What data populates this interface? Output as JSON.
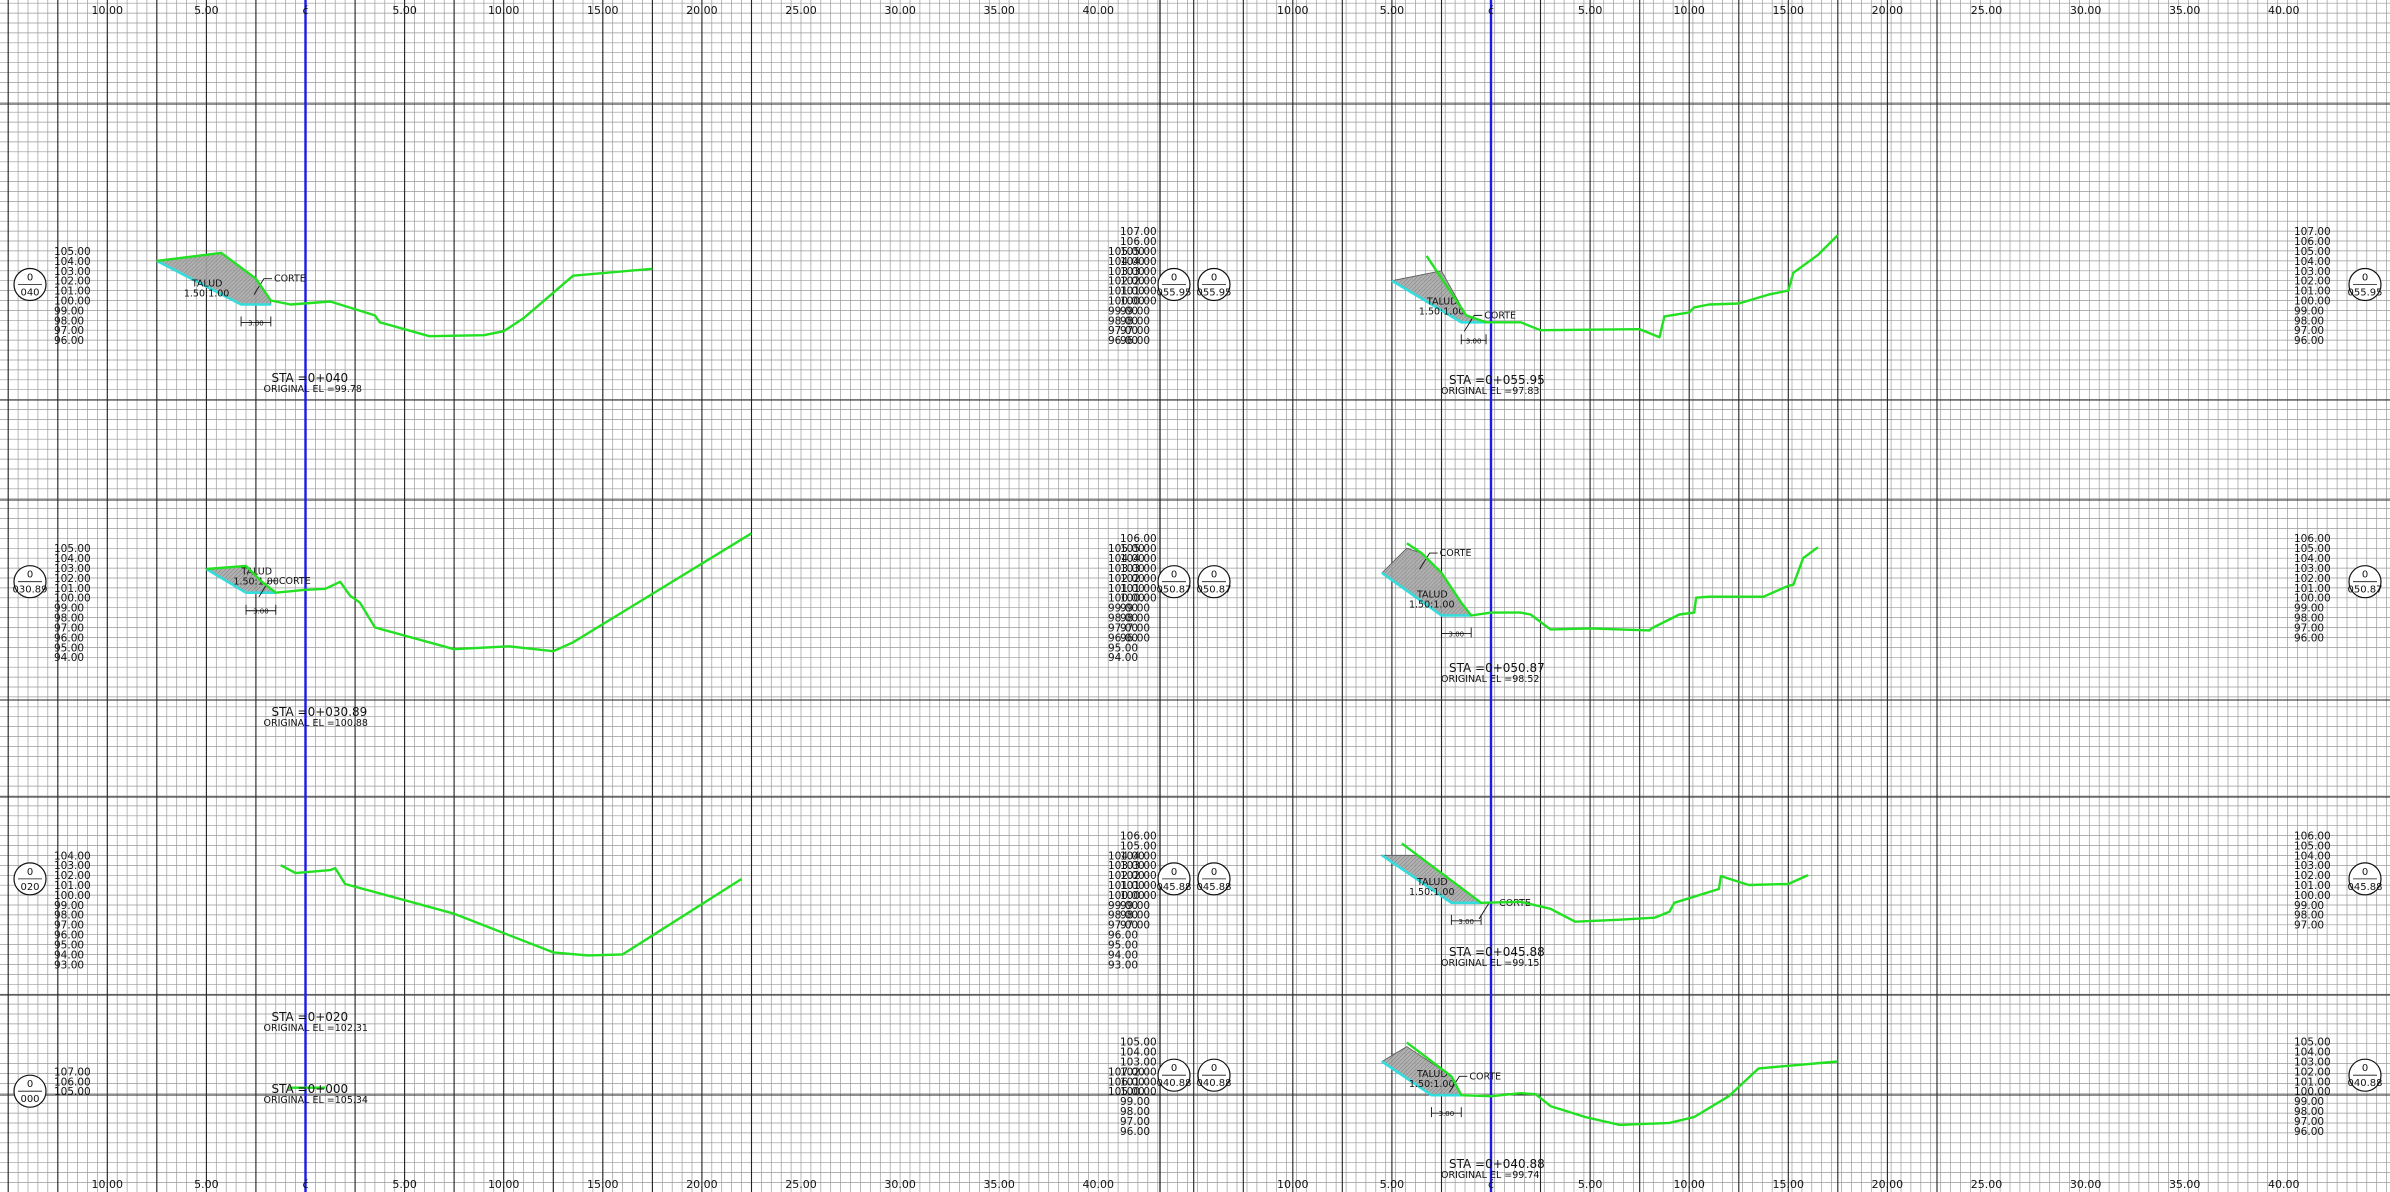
{
  "x_axis": {
    "labels_left": [
      "10.00",
      "5.00",
      "ć",
      "5.00",
      "10.00",
      "15.00",
      "20.00",
      "25.00",
      "30.00",
      "35.00",
      "40.00"
    ],
    "labels_right": [
      "10.00",
      "5.00",
      "ć",
      "5.00",
      "10.00",
      "15.00",
      "20.00",
      "25.00",
      "30.00",
      "35.00",
      "40.00"
    ]
  },
  "sections": [
    {
      "id": "sta-040",
      "column": "left",
      "elev_min": 96,
      "elev_max": 105,
      "axis_label_min": 96,
      "axis_label_max": 105,
      "bubble_left": "040",
      "bubble_right": "040",
      "sta_label": "STA =0+040",
      "orig_label": "ORIGINAL EL =99.78",
      "corte_label": "CORTE",
      "talud_label": "TALUD",
      "talud_ratio": "1.50:1.00",
      "dim_label": "3.00",
      "ground": [
        [
          -15,
          104
        ],
        [
          -8.5,
          104.8
        ],
        [
          -5,
          102.2
        ],
        [
          -3.5,
          100
        ],
        [
          -1.5,
          99.6
        ],
        [
          2.5,
          99.9
        ],
        [
          7,
          98.5
        ],
        [
          7.5,
          97.8
        ],
        [
          12.5,
          96.4
        ],
        [
          18,
          96.5
        ],
        [
          20,
          96.9
        ],
        [
          22,
          98.2
        ],
        [
          27,
          102.5
        ],
        [
          35,
          103.2
        ]
      ],
      "template": [
        [
          -15,
          104
        ],
        [
          -6.5,
          99.6
        ],
        [
          -3.5,
          99.6
        ]
      ],
      "cut": [
        [
          -15,
          104
        ],
        [
          -8.5,
          104.8
        ],
        [
          -5,
          102.2
        ],
        [
          -3.5,
          100
        ],
        [
          -3.5,
          99.6
        ],
        [
          -6.5,
          99.6
        ]
      ]
    },
    {
      "id": "sta-030-89",
      "column": "left",
      "elev_min": 94,
      "elev_max": 105,
      "axis_label_min": 94,
      "axis_label_max": 105,
      "bubble_left": "030.89",
      "bubble_right": "030.89",
      "sta_label": "STA =0+030.89",
      "orig_label": "ORIGINAL EL =100.88",
      "corte_label": "CORTE",
      "talud_label": "TALUD",
      "talud_ratio": "1.50:1.00",
      "dim_label": "3.00",
      "ground": [
        [
          -10,
          102.9
        ],
        [
          -6,
          103.2
        ],
        [
          -4.5,
          101.7
        ],
        [
          -3,
          100.5
        ],
        [
          0,
          100.8
        ],
        [
          2,
          100.9
        ],
        [
          3.5,
          101.6
        ],
        [
          4.5,
          100.2
        ],
        [
          5.5,
          99.5
        ],
        [
          7,
          97
        ],
        [
          15,
          94.8
        ],
        [
          20.5,
          95.1
        ],
        [
          25,
          94.6
        ],
        [
          27,
          95.5
        ],
        [
          45,
          106.5
        ]
      ],
      "template": [
        [
          -10,
          102.9
        ],
        [
          -6,
          100.5
        ],
        [
          -3,
          100.5
        ]
      ],
      "cut": [
        [
          -10,
          102.9
        ],
        [
          -6,
          103.2
        ],
        [
          -4.5,
          101.7
        ],
        [
          -3,
          100.5
        ],
        [
          -6,
          100.5
        ]
      ]
    },
    {
      "id": "sta-020",
      "column": "left",
      "elev_min": 93,
      "elev_max": 104,
      "axis_label_min": 93,
      "axis_label_max": 104,
      "bubble_left": "020",
      "bubble_right": "020",
      "sta_label": "STA =0+020",
      "orig_label": "ORIGINAL EL =102.31",
      "ground": [
        [
          -2.5,
          103
        ],
        [
          -1,
          102.2
        ],
        [
          2.5,
          102.5
        ],
        [
          3,
          102.7
        ],
        [
          4,
          101.1
        ],
        [
          15,
          98.1
        ],
        [
          25,
          94.2
        ],
        [
          28.5,
          93.9
        ],
        [
          32,
          94
        ],
        [
          44,
          101.6
        ]
      ]
    },
    {
      "id": "sta-000",
      "column": "left",
      "elev_min": 105,
      "elev_max": 107,
      "axis_label_min": 105,
      "axis_label_max": 107,
      "bubble_left": "000",
      "bubble_right": "000",
      "sta_label": "STA =0+000",
      "orig_label": "ORIGINAL EL =105.34",
      "ground": [
        [
          -1.8,
          105.35
        ],
        [
          2,
          105.35
        ]
      ]
    },
    {
      "id": "sta-055-95",
      "column": "right",
      "elev_min": 96,
      "elev_max": 107,
      "axis_label_min": 96,
      "axis_label_max": 107,
      "bubble_left": "055.95",
      "bubble_right": "055.95",
      "sta_label": "STA =0+055.95",
      "orig_label": "ORIGINAL EL =97.83",
      "corte_label": "CORTE",
      "talud_label": "TALUD",
      "talud_ratio": "1.50:1.00",
      "dim_label": "3.00",
      "ground": [
        [
          -6.5,
          104.5
        ],
        [
          -2.5,
          98.5
        ],
        [
          -0.5,
          97.8
        ],
        [
          3,
          97.8
        ],
        [
          5,
          97
        ],
        [
          15,
          97.1
        ],
        [
          17,
          96.3
        ],
        [
          17.5,
          98.4
        ],
        [
          20,
          98.8
        ],
        [
          20.5,
          99.3
        ],
        [
          22,
          99.6
        ],
        [
          25,
          99.7
        ],
        [
          28,
          100.6
        ],
        [
          30,
          101
        ],
        [
          30.5,
          102.8
        ],
        [
          33,
          104.6
        ],
        [
          35,
          106.6
        ]
      ],
      "template": [
        [
          -10,
          102
        ],
        [
          -3,
          97.8
        ],
        [
          -0.5,
          97.8
        ]
      ],
      "cut": [
        [
          -10,
          102
        ],
        [
          -5,
          103
        ],
        [
          -2.5,
          98.5
        ],
        [
          -0.5,
          97.8
        ],
        [
          -3,
          97.8
        ]
      ]
    },
    {
      "id": "sta-050-87",
      "column": "right",
      "elev_min": 96,
      "elev_max": 106,
      "axis_label_min": 96,
      "axis_label_max": 106,
      "bubble_left": "050.87",
      "bubble_right": "050.87",
      "sta_label": "STA =0+050.87",
      "orig_label": "ORIGINAL EL =98.52",
      "corte_label": "CORTE",
      "talud_label": "TALUD",
      "talud_ratio": "1.50:1.00",
      "dim_label": "3.00",
      "ground": [
        [
          -8.5,
          105.5
        ],
        [
          -7,
          104.5
        ],
        [
          -5,
          102.5
        ],
        [
          -3,
          99.5
        ],
        [
          -2,
          98.2
        ],
        [
          0,
          98.5
        ],
        [
          3,
          98.5
        ],
        [
          4,
          98.3
        ],
        [
          6,
          96.8
        ],
        [
          10,
          96.9
        ],
        [
          16,
          96.7
        ],
        [
          16.2,
          96.9
        ],
        [
          19,
          98.3
        ],
        [
          20.5,
          98.5
        ],
        [
          20.7,
          100
        ],
        [
          22,
          100.1
        ],
        [
          27.5,
          100.1
        ],
        [
          30,
          101.2
        ],
        [
          30.5,
          101.3
        ],
        [
          31.5,
          104
        ],
        [
          33,
          105.1
        ]
      ],
      "template": [
        [
          -11,
          102.5
        ],
        [
          -5,
          98.2
        ],
        [
          -2,
          98.2
        ]
      ],
      "cut": [
        [
          -11,
          102.5
        ],
        [
          -8.5,
          105
        ],
        [
          -7,
          104.5
        ],
        [
          -5,
          102.5
        ],
        [
          -3,
          99.5
        ],
        [
          -2,
          98.2
        ],
        [
          -5,
          98.2
        ]
      ]
    },
    {
      "id": "sta-045-88",
      "column": "right",
      "elev_min": 97,
      "elev_max": 106,
      "axis_label_min": 97,
      "axis_label_max": 106,
      "bubble_left": "045.88",
      "bubble_right": "045.88",
      "sta_label": "STA =0+045.88",
      "orig_label": "ORIGINAL EL =99.15",
      "corte_label": "CORTE",
      "talud_label": "TALUD",
      "talud_ratio": "1.50:1.00",
      "dim_label": "3.00",
      "ground": [
        [
          -9,
          105.2
        ],
        [
          -1,
          99.2
        ],
        [
          3,
          99.3
        ],
        [
          6,
          98.6
        ],
        [
          8.5,
          97.3
        ],
        [
          13,
          97.5
        ],
        [
          16.5,
          97.7
        ],
        [
          18,
          98.3
        ],
        [
          18.5,
          99.2
        ],
        [
          23,
          100.6
        ],
        [
          23.2,
          101.9
        ],
        [
          26,
          101
        ],
        [
          30,
          101.1
        ],
        [
          32,
          102
        ]
      ],
      "template": [
        [
          -11,
          104
        ],
        [
          -4,
          99.2
        ],
        [
          -1,
          99.2
        ]
      ],
      "cut": [
        [
          -11,
          104
        ],
        [
          -7.5,
          104
        ],
        [
          -1,
          99.2
        ],
        [
          -4,
          99.2
        ]
      ]
    },
    {
      "id": "sta-040-88",
      "column": "right",
      "elev_min": 96,
      "elev_max": 105,
      "axis_label_min": 96,
      "axis_label_max": 105,
      "bubble_left": "040.88",
      "bubble_right": "040.88",
      "sta_label": "STA =0+040.88",
      "orig_label": "ORIGINAL EL =99.74",
      "corte_label": "CORTE",
      "talud_label": "TALUD",
      "talud_ratio": "1.50:1.00",
      "dim_label": "3.00",
      "ground": [
        [
          -8.5,
          104.9
        ],
        [
          -4,
          101.5
        ],
        [
          -3,
          99.6
        ],
        [
          0,
          99.5
        ],
        [
          3,
          99.8
        ],
        [
          4.5,
          99.7
        ],
        [
          6,
          98.5
        ],
        [
          9.5,
          97.4
        ],
        [
          13,
          96.6
        ],
        [
          18,
          96.8
        ],
        [
          20.5,
          97.4
        ],
        [
          24,
          99.5
        ],
        [
          27,
          102.3
        ],
        [
          35,
          103
        ]
      ],
      "template": [
        [
          -11,
          103
        ],
        [
          -6,
          99.6
        ],
        [
          -3,
          99.6
        ]
      ],
      "cut": [
        [
          -11,
          103
        ],
        [
          -8.5,
          104.5
        ],
        [
          -4,
          101.5
        ],
        [
          -3,
          99.6
        ],
        [
          -6,
          99.6
        ]
      ]
    }
  ],
  "colors": {
    "grid_minor": "#9a9a9a",
    "grid_major": "#222222",
    "centerline": "#1a1ae6",
    "ground": "#22e022",
    "template": "#33dddd",
    "cut_fill": "#a8a8a8"
  }
}
